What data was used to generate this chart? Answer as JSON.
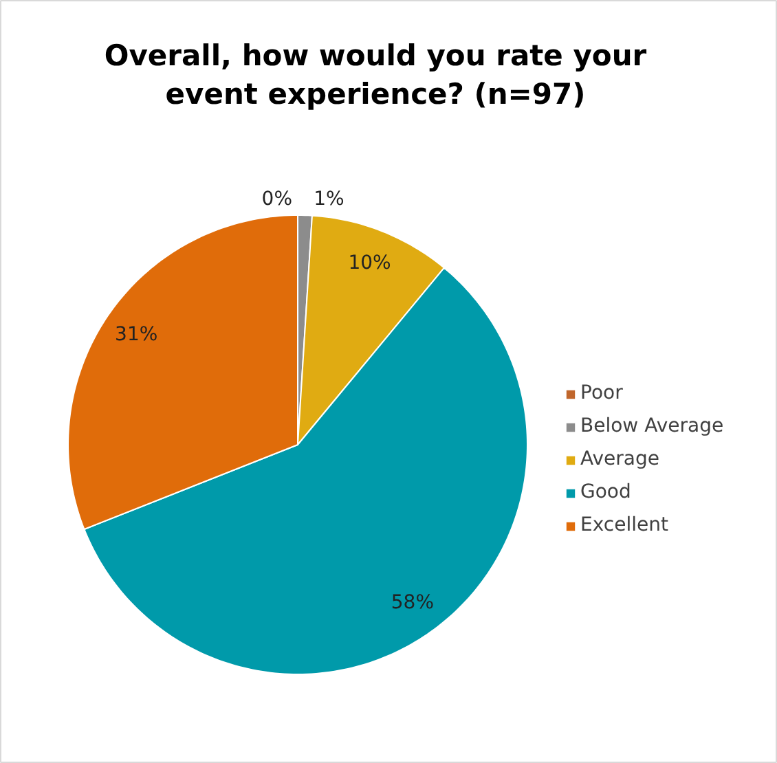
{
  "chart_data": {
    "type": "pie",
    "title": "Overall, how would you rate your event experience? (n=97)",
    "categories": [
      "Poor",
      "Below Average",
      "Average",
      "Good",
      "Excellent"
    ],
    "values": [
      0,
      1,
      10,
      58,
      31
    ],
    "colors": [
      "#c0662c",
      "#8c8c8c",
      "#e0ab12",
      "#009aaa",
      "#e06c0a"
    ],
    "value_labels": [
      "0%",
      "1%",
      "10%",
      "58%",
      "31%"
    ],
    "legend": "right"
  }
}
